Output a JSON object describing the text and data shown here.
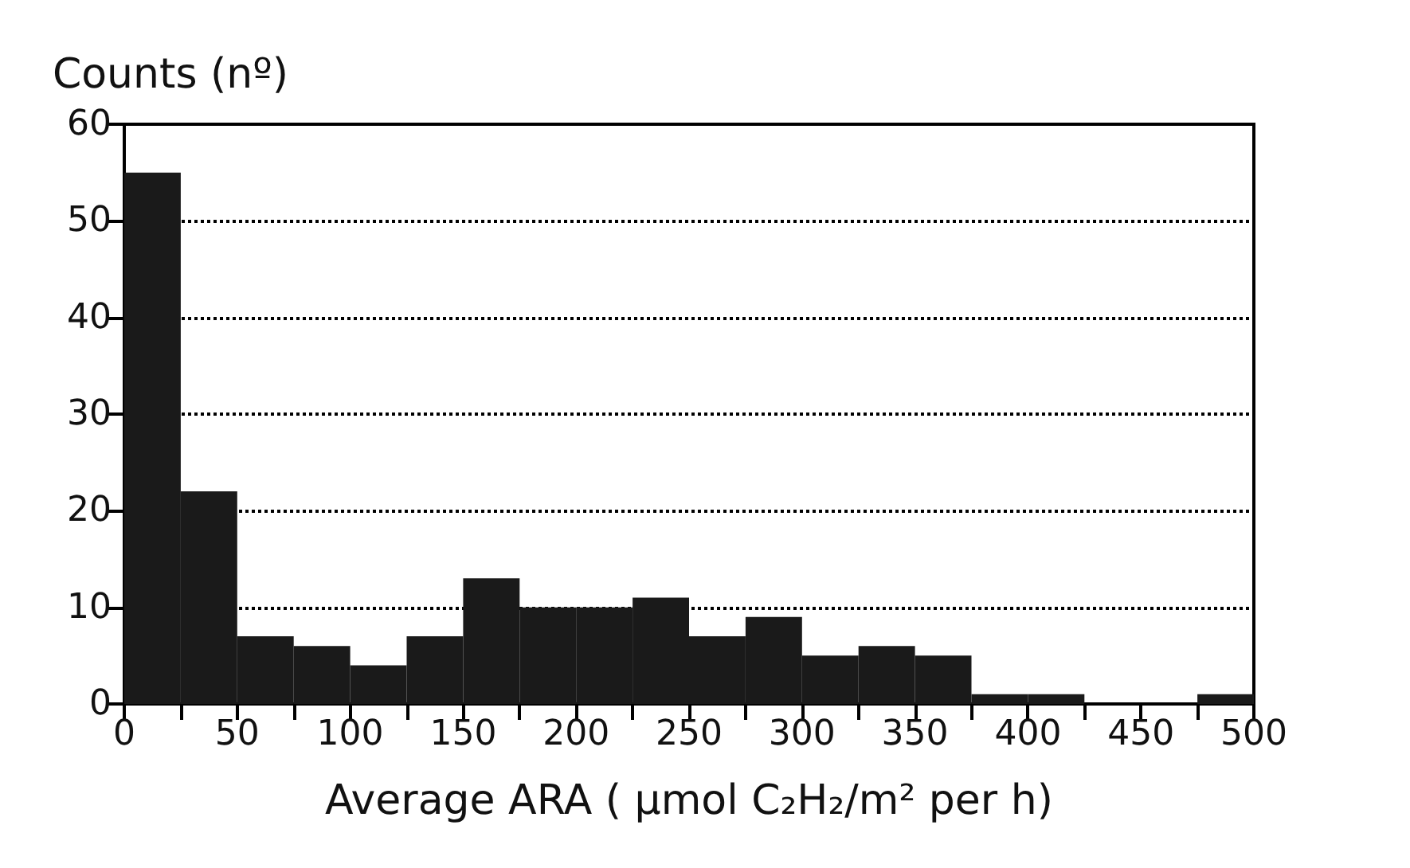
{
  "chart_data": {
    "type": "histogram",
    "xlabel": "Average ARA ( µmol C₂H₂/m² per h)",
    "ylabel": "Counts (nº)",
    "bins": [
      0,
      25,
      50,
      75,
      100,
      125,
      150,
      175,
      200,
      225,
      250,
      275,
      300,
      325,
      350,
      375,
      400,
      425,
      450,
      475,
      500
    ],
    "values": [
      55,
      22,
      7,
      6,
      4,
      7,
      13,
      10,
      10,
      11,
      7,
      9,
      5,
      6,
      5,
      1,
      1,
      0,
      0,
      1
    ],
    "color": "#1a1a1a",
    "xlim": [
      0,
      500
    ],
    "xticks": [
      0,
      {
        "value": 25,
        "label": null
      },
      50,
      {
        "value": 75,
        "label": null
      },
      100,
      {
        "value": 125,
        "label": null
      },
      150,
      {
        "value": 175,
        "label": null
      },
      200,
      {
        "value": 225,
        "label": null
      },
      250,
      {
        "value": 275,
        "label": null
      },
      300,
      {
        "value": 325,
        "label": null
      },
      350,
      {
        "value": 375,
        "label": null
      },
      400,
      {
        "value": 425,
        "label": null
      },
      450,
      {
        "value": 475,
        "label": null
      },
      500
    ],
    "ylim": [
      0,
      60
    ],
    "yticks": [
      0,
      10,
      20,
      30,
      40,
      50,
      60
    ],
    "grid": "y",
    "line_style": "dotted"
  }
}
